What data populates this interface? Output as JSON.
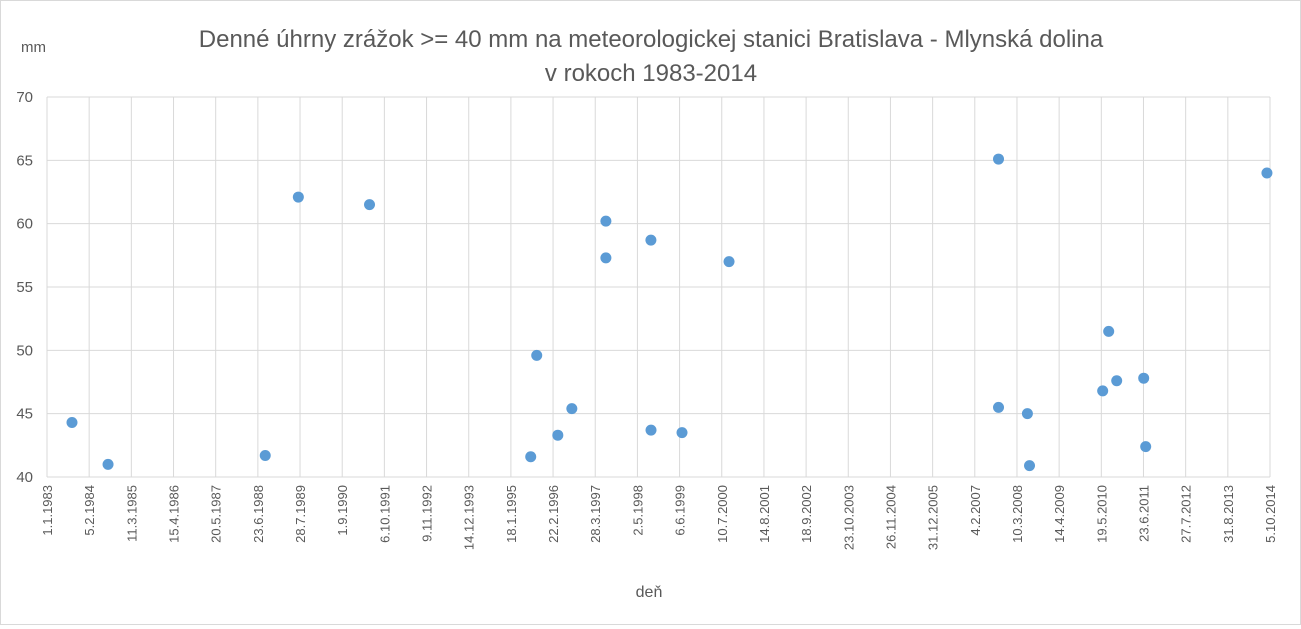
{
  "chart_data": {
    "type": "scatter",
    "title_line1": "Denné úhrny zrážok >= 40 mm na meteorologickej stanici Bratislava  - Mlynská dolina",
    "title_line2": "v rokoch 1983-2014",
    "xlabel": "deň",
    "ylabel": "mm",
    "xlim": [
      "1983-01-01",
      "2014-10-05"
    ],
    "ylim": [
      40,
      70
    ],
    "y_ticks": [
      40,
      45,
      50,
      55,
      60,
      65,
      70
    ],
    "x_tick_labels": [
      "1.1.1983",
      "5.2.1984",
      "11.3.1985",
      "15.4.1986",
      "20.5.1987",
      "23.6.1988",
      "28.7.1989",
      "1.9.1990",
      "6.10.1991",
      "9.11.1992",
      "14.12.1993",
      "18.1.1995",
      "22.2.1996",
      "28.3.1997",
      "2.5.1998",
      "6.6.1999",
      "10.7.2000",
      "14.8.2001",
      "18.9.2002",
      "23.10.2003",
      "26.11.2004",
      "31.12.2005",
      "4.2.2007",
      "10.3.2008",
      "14.4.2009",
      "19.5.2010",
      "23.6.2011",
      "27.7.2012",
      "31.8.2013",
      "5.10.2014"
    ],
    "grid": true,
    "marker_color": "#5b9bd5",
    "points": [
      {
        "x": "1983-08-26",
        "y": 44.3
      },
      {
        "x": "1984-08-02",
        "y": 41.0
      },
      {
        "x": "1988-09-01",
        "y": 41.7
      },
      {
        "x": "1989-07-12",
        "y": 62.1
      },
      {
        "x": "1991-05-18",
        "y": 61.5
      },
      {
        "x": "1995-07-25",
        "y": 41.6
      },
      {
        "x": "1995-09-20",
        "y": 49.6
      },
      {
        "x": "1996-04-07",
        "y": 43.3
      },
      {
        "x": "1996-08-18",
        "y": 45.4
      },
      {
        "x": "1997-07-07",
        "y": 60.2
      },
      {
        "x": "1997-07-07",
        "y": 57.3
      },
      {
        "x": "1998-09-07",
        "y": 58.7
      },
      {
        "x": "1998-09-08",
        "y": 43.7
      },
      {
        "x": "1999-06-29",
        "y": 43.5
      },
      {
        "x": "2000-09-17",
        "y": 57.0
      },
      {
        "x": "2007-09-17",
        "y": 65.1
      },
      {
        "x": "2007-09-17",
        "y": 45.5
      },
      {
        "x": "2008-06-17",
        "y": 45.0
      },
      {
        "x": "2008-07-07",
        "y": 40.9
      },
      {
        "x": "2010-06-01",
        "y": 46.8
      },
      {
        "x": "2010-07-28",
        "y": 51.5
      },
      {
        "x": "2010-10-12",
        "y": 47.6
      },
      {
        "x": "2011-06-25",
        "y": 47.8
      },
      {
        "x": "2011-07-14",
        "y": 42.4
      },
      {
        "x": "2014-09-06",
        "y": 64.0
      }
    ]
  }
}
